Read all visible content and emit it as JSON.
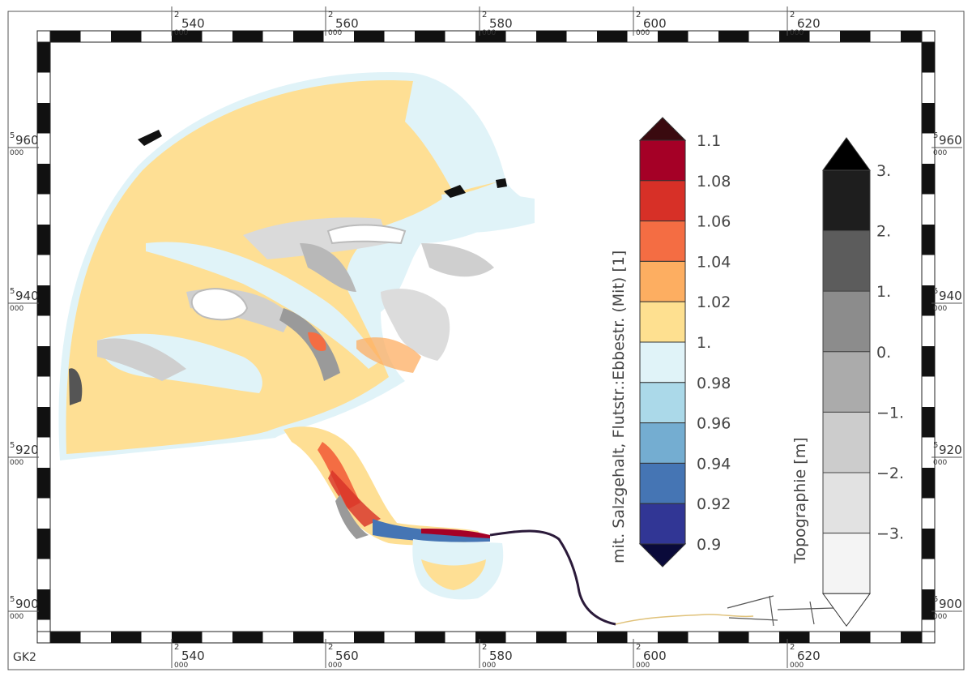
{
  "map": {
    "projection_label": "GK2",
    "x_ticks": [
      {
        "prefix": "2",
        "major": "540",
        "suffix": "000"
      },
      {
        "prefix": "2",
        "major": "560",
        "suffix": "000"
      },
      {
        "prefix": "2",
        "major": "580",
        "suffix": "000"
      },
      {
        "prefix": "2",
        "major": "600",
        "suffix": "000"
      },
      {
        "prefix": "2",
        "major": "620",
        "suffix": "000"
      }
    ],
    "y_ticks": [
      {
        "prefix": "5",
        "major": "960",
        "suffix": "000"
      },
      {
        "prefix": "5",
        "major": "940",
        "suffix": "000"
      },
      {
        "prefix": "5",
        "major": "920",
        "suffix": "000"
      },
      {
        "prefix": "5",
        "major": "900",
        "suffix": "000"
      }
    ]
  },
  "legend_ratio": {
    "title": "mit. Salzgehalt, Flutstr.:Ebbestr. (Mit) [1]",
    "labels": [
      "1.1",
      "1.08",
      "1.06",
      "1.04",
      "1.02",
      "1.",
      "0.98",
      "0.96",
      "0.94",
      "0.92",
      "0.9"
    ],
    "colors_top_to_bottom": [
      "#a50026",
      "#d73027",
      "#f46d43",
      "#fdae61",
      "#fee090",
      "#e0f3f8",
      "#abd9e9",
      "#74add1",
      "#4575b4",
      "#313695"
    ],
    "over_color": "#3a0a0f",
    "under_color": "#0a0a3a"
  },
  "legend_topo": {
    "title": "Topographie [m]",
    "labels": [
      "3.",
      "2.",
      "1.",
      "0.",
      "−1.",
      "−2.",
      "−3."
    ],
    "colors_top_to_bottom": [
      "#1e1e1e",
      "#5c5c5c",
      "#8c8c8c",
      "#ababab",
      "#cccccc",
      "#e2e2e2",
      "#f4f4f4"
    ],
    "over_color": "#000000",
    "under_color": "#ffffff"
  }
}
